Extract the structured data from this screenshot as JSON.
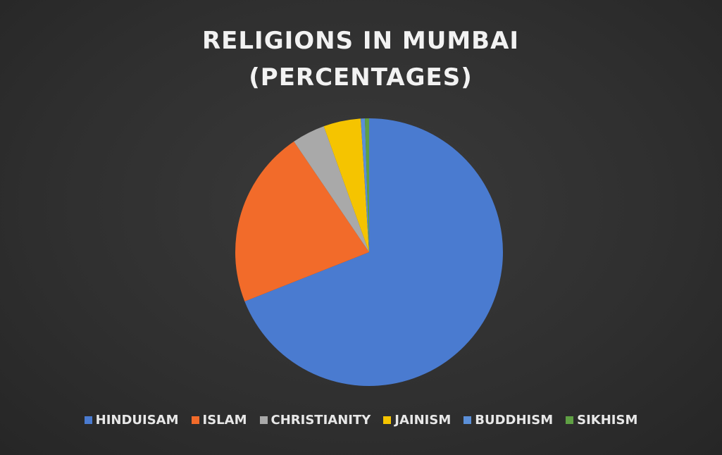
{
  "chart_data": {
    "type": "pie",
    "title": "RELIGIONS IN MUMBAI (PERCENTAGES)",
    "categories": [
      "HINDUISAM",
      "ISLAM",
      "CHRISTIANITY",
      "JAINISM",
      "BUDDHISM",
      "SIKHISM"
    ],
    "values": [
      69,
      21.5,
      4,
      4.5,
      0.5,
      0.5
    ],
    "colors": [
      "#4a7bd0",
      "#f26b2a",
      "#a9a9a9",
      "#f5c400",
      "#5b8fd8",
      "#5fa044"
    ],
    "legend": "bottom"
  }
}
